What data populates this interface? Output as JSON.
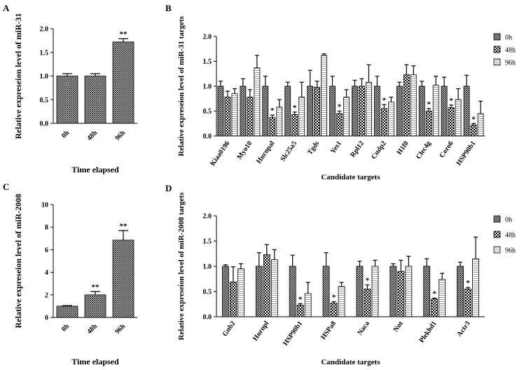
{
  "panel_labels": [
    "A",
    "B",
    "C",
    "D"
  ],
  "colors": {
    "bar_stroke": "#000000",
    "background": "#ffffff"
  },
  "chart_data": [
    {
      "type": "bar",
      "panel": "A",
      "categories": [
        "0h",
        "48h",
        "96h"
      ],
      "series": [
        {
          "values": [
            1.0,
            1.0,
            1.72
          ],
          "errors": [
            0.05,
            0.05,
            0.07
          ],
          "pattern": "crosshatch"
        }
      ],
      "significance": [
        "",
        "",
        "**"
      ],
      "xlabel": "Time elapsed",
      "ylabel": "Relative expreseion level of miR-31",
      "ylim": [
        0,
        2.0
      ],
      "yticks": [
        "0.0",
        "0.5",
        "1.0",
        "1.5",
        "2.0"
      ],
      "legend": null,
      "grid": false
    },
    {
      "type": "bar",
      "panel": "B",
      "categories": [
        "Kiaa0196",
        "Myo10",
        "Hnrnpal",
        "Slc25a5",
        "Tgds",
        "Yes1",
        "Rpl12",
        "Cndp2",
        "H1f0",
        "Clec4g",
        "Coro6",
        "HSP90b1"
      ],
      "series": [
        {
          "name": "0h",
          "pattern": "crosshatch",
          "values": [
            1.0,
            1.0,
            1.0,
            1.0,
            1.0,
            1.0,
            1.0,
            1.0,
            1.0,
            1.0,
            1.0,
            1.0
          ],
          "errors": [
            0.1,
            0.15,
            0.2,
            0.08,
            0.32,
            0.2,
            0.12,
            0.2,
            0.08,
            0.1,
            0.18,
            0.22
          ]
        },
        {
          "name": "48h",
          "pattern": "checker",
          "values": [
            0.78,
            0.78,
            0.37,
            0.43,
            0.98,
            0.45,
            1.0,
            0.55,
            1.23,
            0.5,
            0.57,
            0.22
          ],
          "errors": [
            0.12,
            0.15,
            0.05,
            0.05,
            0.12,
            0.05,
            0.15,
            0.08,
            0.2,
            0.05,
            0.05,
            0.03
          ]
        },
        {
          "name": "96h",
          "pattern": "lines",
          "values": [
            0.85,
            1.37,
            0.58,
            0.78,
            1.62,
            0.78,
            1.08,
            0.68,
            1.23,
            1.02,
            0.73,
            0.45
          ],
          "errors": [
            0.1,
            0.25,
            0.15,
            0.3,
            0.03,
            0.15,
            0.35,
            0.1,
            0.18,
            0.18,
            0.22,
            0.25
          ]
        }
      ],
      "significance": [
        [
          "",
          "",
          ""
        ],
        [
          "",
          "",
          ""
        ],
        [
          "",
          "*",
          ""
        ],
        [
          "",
          "*",
          ""
        ],
        [
          "",
          "",
          ""
        ],
        [
          "",
          "*",
          ""
        ],
        [
          "",
          "",
          ""
        ],
        [
          "",
          "*",
          ""
        ],
        [
          "",
          "",
          ""
        ],
        [
          "",
          "*",
          ""
        ],
        [
          "",
          "*",
          ""
        ],
        [
          "",
          "*",
          ""
        ]
      ],
      "xlabel": "Candidate targets",
      "ylabel": "Relative expreseion level of miR-31 targets",
      "ylim": [
        0,
        2.0
      ],
      "yticks": [
        "0.0",
        "0.5",
        "1.0",
        "1.5",
        "2.0"
      ],
      "legend": "top-right",
      "grid": false
    },
    {
      "type": "bar",
      "panel": "C",
      "categories": [
        "0h",
        "48h",
        "96h"
      ],
      "series": [
        {
          "values": [
            1.0,
            2.0,
            6.85
          ],
          "errors": [
            0.05,
            0.3,
            0.85
          ],
          "pattern": "crosshatch"
        }
      ],
      "significance": [
        "",
        "**",
        "**"
      ],
      "xlabel": "Time elapsed",
      "ylabel": "Relative expreseion level of miR-2008",
      "ylim": [
        0,
        10
      ],
      "yticks": [
        "0",
        "2",
        "4",
        "6",
        "8",
        "10"
      ],
      "legend": null,
      "grid": false
    },
    {
      "type": "bar",
      "panel": "D",
      "categories": [
        "Gnb2",
        "Hnrnpl",
        "HSP90b1",
        "HSPa8",
        "Naca",
        "Nnt",
        "Plekhd1",
        "Actr3"
      ],
      "series": [
        {
          "name": "0h",
          "pattern": "crosshatch",
          "values": [
            1.0,
            1.0,
            1.0,
            1.0,
            1.0,
            1.0,
            1.0,
            1.0
          ],
          "errors": [
            0.03,
            0.27,
            0.22,
            0.27,
            0.1,
            0.05,
            0.15,
            0.08
          ]
        },
        {
          "name": "48h",
          "pattern": "checker",
          "values": [
            0.69,
            1.23,
            0.23,
            0.27,
            0.55,
            0.9,
            0.35,
            0.55
          ],
          "errors": [
            0.3,
            0.2,
            0.03,
            0.03,
            0.08,
            0.22,
            0.02,
            0.03
          ]
        },
        {
          "name": "96h",
          "pattern": "lines",
          "values": [
            0.95,
            1.13,
            0.46,
            0.6,
            1.0,
            1.0,
            0.74,
            1.15
          ],
          "errors": [
            0.1,
            0.2,
            0.22,
            0.08,
            0.12,
            0.2,
            0.12,
            0.43
          ]
        }
      ],
      "significance": [
        [
          "",
          "",
          ""
        ],
        [
          "",
          "",
          ""
        ],
        [
          "",
          "*",
          ""
        ],
        [
          "",
          "*",
          ""
        ],
        [
          "",
          "*",
          ""
        ],
        [
          "",
          "",
          ""
        ],
        [
          "",
          "*",
          ""
        ],
        [
          "",
          "*",
          ""
        ]
      ],
      "xlabel": "Candidate targets",
      "ylabel": "Relative expreseion level of miR-2008 targets",
      "ylim": [
        0,
        2.0
      ],
      "yticks": [
        "0.0",
        "0.5",
        "1.0",
        "1.5",
        "2.0"
      ],
      "legend": "top-right",
      "grid": false
    }
  ]
}
